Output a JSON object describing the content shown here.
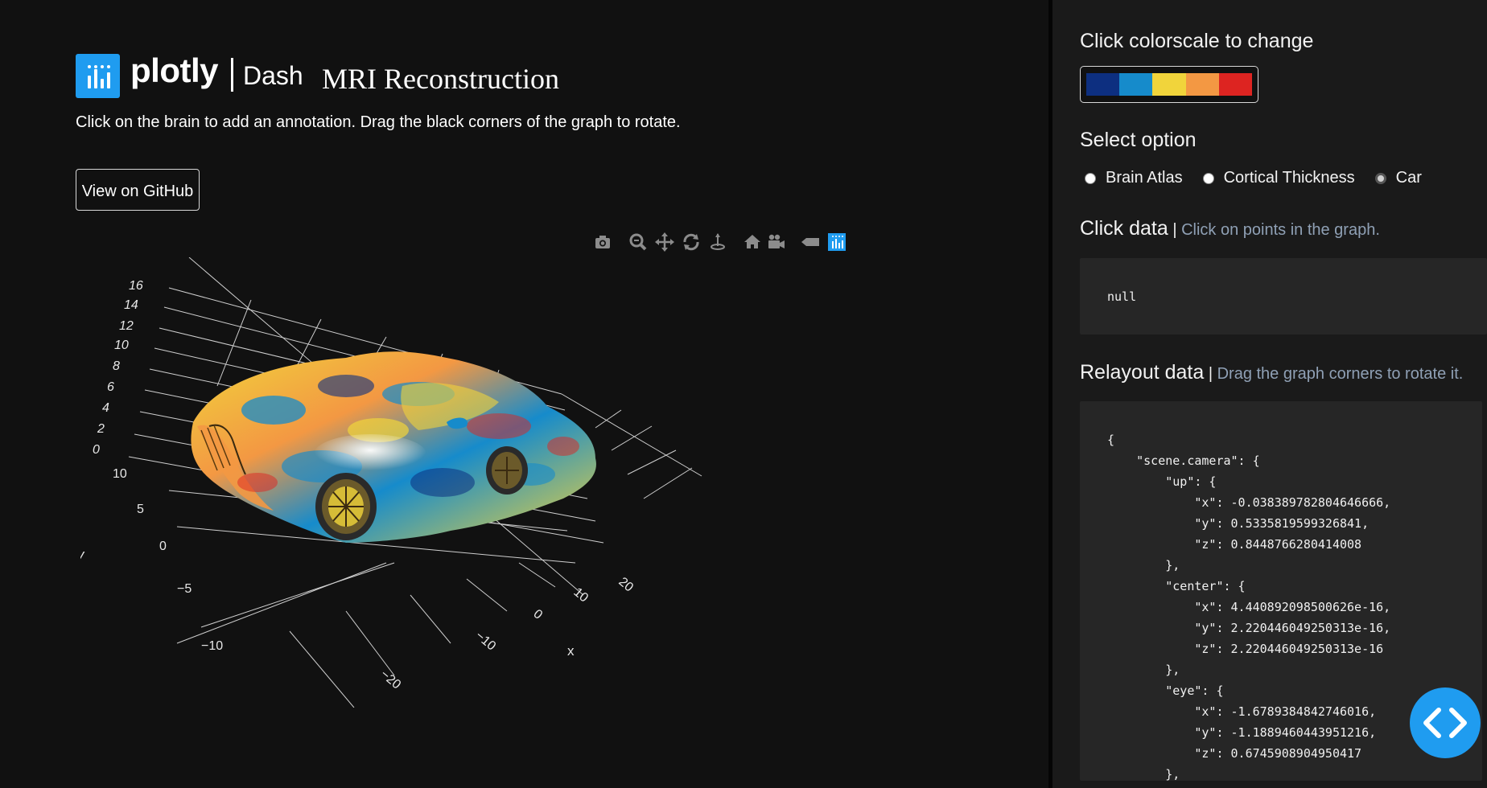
{
  "header": {
    "brand": "plotly",
    "brand_product": "Dash",
    "title": "MRI Reconstruction",
    "subtitle": "Click on the brain to add an annotation. Drag the black corners of the graph to rotate.",
    "github_button": "View on GitHub"
  },
  "modebar": {
    "icons": [
      "camera-icon",
      "zoom-icon",
      "pan-icon",
      "orbit-rotation-icon",
      "turntable-rotation-icon",
      "reset-camera-home-icon",
      "reset-camera-last-icon",
      "toggle-hover-icon",
      "plotly-logo-icon"
    ]
  },
  "scene": {
    "z_ticks": [
      "16",
      "14",
      "12",
      "10",
      "8",
      "6",
      "4",
      "2",
      "0"
    ],
    "y_ticks": [
      "10",
      "5",
      "0",
      "−5",
      "−10"
    ],
    "y_title": "y",
    "x_ticks": [
      "−20",
      "−10",
      "0",
      "10",
      "20"
    ],
    "x_title": "x"
  },
  "panel": {
    "colorscale_heading": "Click colorscale to change",
    "colorscale_colors": [
      "#0d2f80",
      "#168bcb",
      "#f1d43b",
      "#f39843",
      "#dd2421"
    ],
    "option_heading": "Select option",
    "options": [
      {
        "label": "Brain Atlas",
        "checked": false
      },
      {
        "label": "Cortical Thickness",
        "checked": false
      },
      {
        "label": "Car",
        "checked": true
      }
    ],
    "click_heading": "Click data",
    "click_sep": " | ",
    "click_sub": "Click on points in the graph.",
    "click_value": "null",
    "relayout_heading": "Relayout data",
    "relayout_sep": " | ",
    "relayout_sub": "Drag the graph corners to rotate it.",
    "relayout_value": "{\n    \"scene.camera\": {\n        \"up\": {\n            \"x\": -0.038389782804646666,\n            \"y\": 0.5335819599326841,\n            \"z\": 0.8448766280414008\n        },\n        \"center\": {\n            \"x\": 4.440892098500626e-16,\n            \"y\": 2.220446049250313e-16,\n            \"z\": 2.220446049250313e-16\n        },\n        \"eye\": {\n            \"x\": -1.6789384842746016,\n            \"y\": -1.1889460443951216,\n            \"z\": 0.6745908904950417\n        },"
  }
}
